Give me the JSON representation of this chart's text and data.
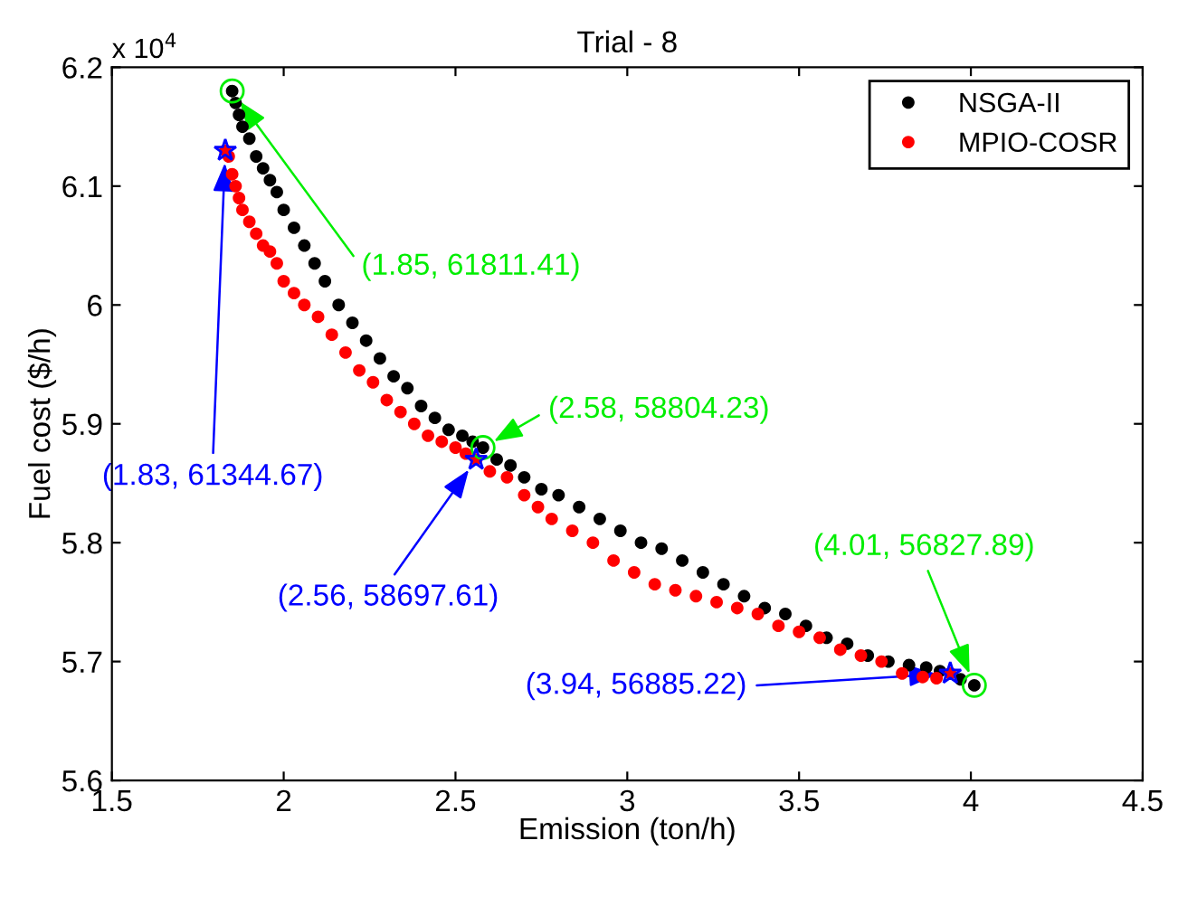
{
  "chart_data": {
    "type": "scatter",
    "title": "Trial - 8",
    "xlabel": "Emission (ton/h)",
    "ylabel": "Fuel cost ($/h)",
    "xlim": [
      1.5,
      4.5
    ],
    "xticks": [
      1.5,
      2,
      2.5,
      3,
      3.5,
      4,
      4.5
    ],
    "ylim": [
      5.6,
      6.2
    ],
    "yticks": [
      5.6,
      5.7,
      5.8,
      5.9,
      6,
      6.1,
      6.2
    ],
    "legend": "top right",
    "marker": "circle",
    "grid": false,
    "series": [
      {
        "name": "NSGA-II",
        "color": "#000000",
        "x": [
          1.85,
          1.86,
          1.87,
          1.88,
          1.9,
          1.92,
          1.94,
          1.96,
          1.98,
          2.0,
          2.03,
          2.06,
          2.09,
          2.12,
          2.16,
          2.2,
          2.24,
          2.28,
          2.32,
          2.36,
          2.4,
          2.44,
          2.48,
          2.52,
          2.55,
          2.58,
          2.62,
          2.66,
          2.7,
          2.75,
          2.8,
          2.86,
          2.92,
          2.98,
          3.04,
          3.1,
          3.16,
          3.22,
          3.28,
          3.34,
          3.4,
          3.46,
          3.52,
          3.58,
          3.64,
          3.7,
          3.76,
          3.82,
          3.87,
          3.91,
          3.97,
          4.01
        ],
        "values": [
          6.18,
          6.17,
          6.16,
          6.15,
          6.14,
          6.125,
          6.115,
          6.105,
          6.095,
          6.08,
          6.065,
          6.05,
          6.035,
          6.02,
          6.0,
          5.985,
          5.97,
          5.955,
          5.94,
          5.93,
          5.915,
          5.905,
          5.895,
          5.89,
          5.885,
          5.88,
          5.87,
          5.865,
          5.855,
          5.845,
          5.84,
          5.83,
          5.82,
          5.81,
          5.8,
          5.795,
          5.785,
          5.775,
          5.765,
          5.755,
          5.745,
          5.74,
          5.73,
          5.72,
          5.715,
          5.705,
          5.7,
          5.697,
          5.695,
          5.692,
          5.685,
          5.68
        ]
      },
      {
        "name": "MPIO-COSR",
        "color": "#ff0000",
        "x": [
          1.83,
          1.84,
          1.85,
          1.86,
          1.87,
          1.88,
          1.9,
          1.92,
          1.94,
          1.96,
          1.98,
          2.0,
          2.03,
          2.06,
          2.1,
          2.14,
          2.18,
          2.22,
          2.26,
          2.3,
          2.34,
          2.38,
          2.42,
          2.46,
          2.5,
          2.53,
          2.56,
          2.6,
          2.65,
          2.7,
          2.74,
          2.78,
          2.84,
          2.9,
          2.96,
          3.02,
          3.08,
          3.14,
          3.2,
          3.26,
          3.32,
          3.38,
          3.44,
          3.5,
          3.56,
          3.62,
          3.68,
          3.74,
          3.8,
          3.86,
          3.9,
          3.94
        ],
        "values": [
          6.13,
          6.125,
          6.11,
          6.1,
          6.09,
          6.08,
          6.07,
          6.06,
          6.05,
          6.045,
          6.035,
          6.02,
          6.01,
          6.0,
          5.99,
          5.975,
          5.96,
          5.945,
          5.935,
          5.92,
          5.91,
          5.9,
          5.89,
          5.885,
          5.88,
          5.875,
          5.87,
          5.86,
          5.855,
          5.84,
          5.83,
          5.82,
          5.81,
          5.8,
          5.785,
          5.775,
          5.765,
          5.76,
          5.755,
          5.75,
          5.745,
          5.74,
          5.73,
          5.725,
          5.72,
          5.71,
          5.705,
          5.7,
          5.69,
          5.687,
          5.686,
          5.69
        ]
      }
    ],
    "annotations": [
      {
        "text": "(1.85, 61811.41)",
        "x": 1.85,
        "y": 6.18
      },
      {
        "text": "(2.58, 58804.23)",
        "x": 2.58,
        "y": 5.88
      },
      {
        "text": "(4.01, 56827.89)",
        "x": 4.01,
        "y": 5.68
      },
      {
        "text": "(1.83, 61344.67)",
        "x": 1.83,
        "y": 6.13
      },
      {
        "text": "(2.56, 58697.61)",
        "x": 2.56,
        "y": 5.87
      },
      {
        "text": "(3.94, 56885.22)",
        "x": 3.94,
        "y": 5.69
      },
      "x 10$^{4}$"
    ]
  }
}
